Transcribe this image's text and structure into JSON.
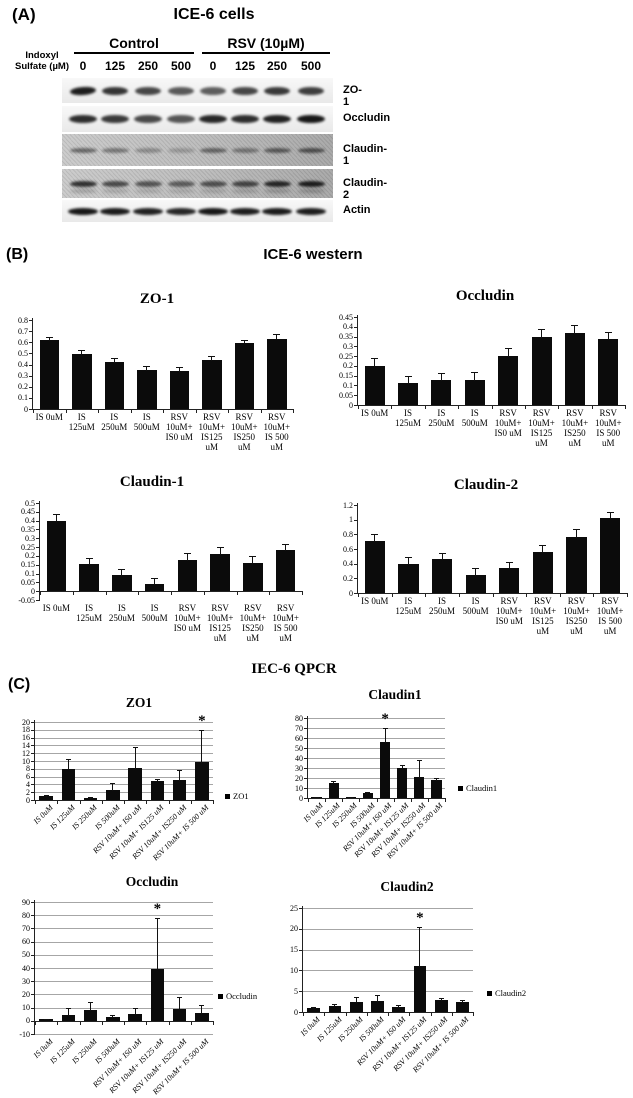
{
  "panelA": {
    "label": "(A)",
    "title": "ICE-6 cells",
    "axis_label_line1": "Indoxyl",
    "axis_label_line2": "Sulfate (µM)",
    "groups": [
      {
        "label": "Control"
      },
      {
        "label": "RSV (10µM)"
      }
    ],
    "doses": [
      "0",
      "125",
      "250",
      "500",
      "0",
      "125",
      "250",
      "500"
    ],
    "blot_rows": [
      {
        "label": "ZO-1",
        "background": "light",
        "band_intensities": [
          0.92,
          0.82,
          0.74,
          0.66,
          0.64,
          0.74,
          0.8,
          0.78
        ]
      },
      {
        "label": "Occludin",
        "background": "light",
        "band_intensities": [
          0.85,
          0.8,
          0.73,
          0.68,
          0.88,
          0.85,
          0.9,
          0.95
        ]
      },
      {
        "label": "Claudin-1",
        "background": "gray",
        "band_intensities": [
          0.5,
          0.42,
          0.3,
          0.22,
          0.5,
          0.4,
          0.55,
          0.6
        ]
      },
      {
        "label": "Claudin-2",
        "background": "gray",
        "band_intensities": [
          0.8,
          0.66,
          0.6,
          0.55,
          0.62,
          0.68,
          0.85,
          0.9
        ]
      },
      {
        "label": "Actin",
        "background": "light",
        "band_intensities": [
          0.95,
          0.93,
          0.9,
          0.88,
          0.95,
          0.92,
          0.93,
          0.92
        ]
      }
    ]
  },
  "panelB": {
    "label": "(B)",
    "title": "ICE-6 western"
  },
  "panelC": {
    "label": "(C)",
    "title": "IEC-6 QPCR"
  },
  "chart_data": [
    {
      "id": "b_zo1",
      "panel": "B",
      "type": "bar",
      "title": "ZO-1",
      "categories": [
        [
          "IS 0uM"
        ],
        [
          "IS",
          "125uM"
        ],
        [
          "IS",
          "250uM"
        ],
        [
          "IS",
          "500uM"
        ],
        [
          "RSV",
          "10uM+",
          "IS0 uM"
        ],
        [
          "RSV",
          "10uM+",
          "IS125",
          "uM"
        ],
        [
          "RSV",
          "10uM+",
          "IS250",
          "uM"
        ],
        [
          "RSV",
          "10uM+",
          "IS 500",
          "uM"
        ]
      ],
      "values": [
        0.62,
        0.49,
        0.42,
        0.35,
        0.34,
        0.44,
        0.59,
        0.63
      ],
      "errors": [
        0.03,
        0.04,
        0.04,
        0.04,
        0.04,
        0.04,
        0.03,
        0.04
      ],
      "xlabel": "",
      "ylabel": "",
      "ylim": [
        0,
        0.8
      ],
      "ystep": 0.1,
      "grid": false,
      "legend": null,
      "star_index": null,
      "star_label": null,
      "bar_color": "#0b0b0b"
    },
    {
      "id": "b_occludin",
      "panel": "B",
      "type": "bar",
      "title": "Occludin",
      "categories": [
        [
          "IS 0uM"
        ],
        [
          "IS",
          "125uM"
        ],
        [
          "IS",
          "250uM"
        ],
        [
          "IS",
          "500uM"
        ],
        [
          "RSV",
          "10uM+",
          "IS0 uM"
        ],
        [
          "RSV",
          "10uM+",
          "IS125",
          "uM"
        ],
        [
          "RSV",
          "10uM+",
          "IS250",
          "uM"
        ],
        [
          "RSV",
          "10uM+",
          "IS 500",
          "uM"
        ]
      ],
      "values": [
        0.2,
        0.11,
        0.13,
        0.13,
        0.25,
        0.35,
        0.37,
        0.34
      ],
      "errors": [
        0.04,
        0.04,
        0.035,
        0.04,
        0.04,
        0.04,
        0.04,
        0.035
      ],
      "xlabel": "",
      "ylabel": "",
      "ylim": [
        0,
        0.45
      ],
      "ystep": 0.05,
      "grid": false,
      "legend": null,
      "star_index": null,
      "star_label": null,
      "bar_color": "#0b0b0b"
    },
    {
      "id": "b_claudin1",
      "panel": "B",
      "type": "bar",
      "title": "Claudin-1",
      "categories": [
        [
          "IS 0uM"
        ],
        [
          "IS",
          "125uM"
        ],
        [
          "IS",
          "250uM"
        ],
        [
          "IS",
          "500uM"
        ],
        [
          "RSV",
          "10uM+",
          "IS0 uM"
        ],
        [
          "RSV",
          "10uM+",
          "IS125",
          "uM"
        ],
        [
          "RSV",
          "10uM+",
          "IS250",
          "uM"
        ],
        [
          "RSV",
          "10uM+",
          "IS 500",
          "uM"
        ]
      ],
      "values": [
        0.4,
        0.155,
        0.09,
        0.04,
        0.175,
        0.21,
        0.16,
        0.235
      ],
      "errors": [
        0.04,
        0.035,
        0.035,
        0.035,
        0.04,
        0.04,
        0.04,
        0.035
      ],
      "xlabel": "",
      "ylabel": "",
      "ylim": [
        -0.05,
        0.5
      ],
      "ystep": 0.05,
      "grid": false,
      "legend": null,
      "star_index": null,
      "star_label": null,
      "bar_color": "#0b0b0b"
    },
    {
      "id": "b_claudin2",
      "panel": "B",
      "type": "bar",
      "title": "Claudin-2",
      "categories": [
        [
          "IS 0uM"
        ],
        [
          "IS",
          "125uM"
        ],
        [
          "IS",
          "250uM"
        ],
        [
          "IS",
          "500uM"
        ],
        [
          "RSV",
          "10uM+",
          "IS0 uM"
        ],
        [
          "RSV",
          "10uM+",
          "IS125",
          "uM"
        ],
        [
          "RSV",
          "10uM+",
          "IS250",
          "uM"
        ],
        [
          "RSV",
          "10uM+",
          "IS 500",
          "uM"
        ]
      ],
      "values": [
        0.71,
        0.39,
        0.46,
        0.25,
        0.34,
        0.56,
        0.77,
        1.02
      ],
      "errors": [
        0.09,
        0.1,
        0.09,
        0.09,
        0.08,
        0.09,
        0.1,
        0.09
      ],
      "xlabel": "",
      "ylabel": "",
      "ylim": [
        0,
        1.2
      ],
      "ystep": 0.2,
      "grid": false,
      "legend": null,
      "star_index": null,
      "star_label": null,
      "bar_color": "#0b0b0b"
    },
    {
      "id": "c_zo1",
      "panel": "C",
      "type": "bar",
      "title": "ZO1",
      "categories": [
        "IS 0uM",
        "IS 125uM",
        "IS 250uM",
        "IS 500uM",
        "RSV 10uM+ IS0 uM",
        "RSV 10uM+ IS125 uM",
        "RSV 10uM+ IS250 uM",
        "RSV 10uM+ IS 500 uM"
      ],
      "values": [
        1,
        8,
        0.4,
        2.5,
        8.2,
        5,
        5.2,
        9.8
      ],
      "errors": [
        0.3,
        2.5,
        0.4,
        1.9,
        5.5,
        0.5,
        2.6,
        8.2
      ],
      "xlabel": "",
      "ylabel": "",
      "ylim": [
        0,
        20
      ],
      "ystep": 2,
      "grid": true,
      "legend": "ZO1",
      "legend_position": "right",
      "star_index": 7,
      "star_label": "*",
      "bar_color": "#0b0b0b"
    },
    {
      "id": "c_claudin1",
      "panel": "C",
      "type": "bar",
      "title": "Claudin1",
      "categories": [
        "IS 0uM",
        "IS 125uM",
        "IS 250uM",
        "IS 500uM",
        "RSV 10uM+ IS0 uM",
        "RSV 10uM+ IS125 uM",
        "RSV 10uM+ IS250 uM",
        "RSV 10uM+ IS 500 uM"
      ],
      "values": [
        1,
        15,
        1,
        5,
        56,
        30,
        21,
        18
      ],
      "errors": [
        0.5,
        2,
        0.5,
        1,
        14,
        3,
        17,
        2
      ],
      "xlabel": "",
      "ylabel": "",
      "ylim": [
        0,
        80
      ],
      "ystep": 10,
      "grid": true,
      "legend": "Claudin1",
      "legend_position": "right",
      "star_index": 4,
      "star_label": "*",
      "bar_color": "#0b0b0b"
    },
    {
      "id": "c_occludin",
      "panel": "C",
      "type": "bar",
      "title": "Occludin",
      "categories": [
        "IS 0uM",
        "IS 125uM",
        "IS 250uM",
        "IS 500uM",
        "RSV 10uM+ IS0 uM",
        "RSV 10uM+ IS125 uM",
        "RSV 10uM+ IS250 uM",
        "RSV 10uM+ IS 500 uM"
      ],
      "values": [
        1,
        4.5,
        8,
        3,
        5,
        39,
        9,
        6
      ],
      "errors": [
        0.5,
        5,
        6.5,
        1.5,
        5,
        39,
        9,
        6
      ],
      "xlabel": "",
      "ylabel": "",
      "ylim": [
        -10,
        90
      ],
      "ystep": 10,
      "grid": true,
      "legend": "Occludin",
      "legend_position": "right",
      "star_index": 5,
      "star_label": "*",
      "bar_color": "#0b0b0b"
    },
    {
      "id": "c_claudin2",
      "panel": "C",
      "type": "bar",
      "title": "Claudin2",
      "categories": [
        "IS 0uM",
        "IS 125uM",
        "IS 250uM",
        "IS 500uM",
        "RSV 10uM+ IS0 uM",
        "RSV 10uM+ IS125 uM",
        "RSV 10uM+ IS250 uM",
        "RSV 10uM+ IS 500 uM"
      ],
      "values": [
        1,
        1.5,
        2.5,
        2.7,
        1.3,
        11,
        2.8,
        2.3
      ],
      "errors": [
        0.3,
        0.5,
        1,
        1.3,
        0.5,
        9.5,
        0.5,
        0.7
      ],
      "xlabel": "",
      "ylabel": "",
      "ylim": [
        0,
        25
      ],
      "ystep": 5,
      "grid": true,
      "legend": "Claudin2",
      "legend_position": "right",
      "star_index": 5,
      "star_label": "*",
      "bar_color": "#0b0b0b"
    }
  ]
}
